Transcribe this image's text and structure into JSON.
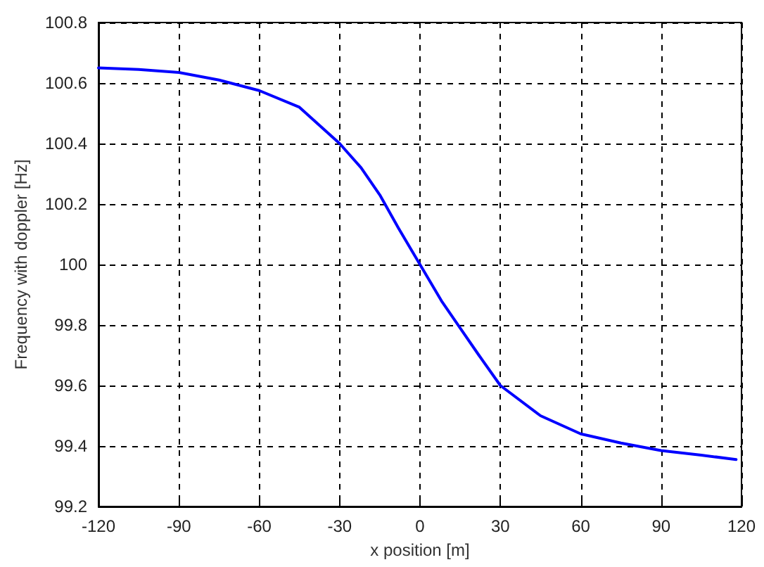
{
  "chart_data": {
    "type": "line",
    "xlabel": "x position [m]",
    "ylabel": "Frequency with doppler [Hz]",
    "x": [
      -120,
      -105,
      -90,
      -75,
      -60,
      -45,
      -30,
      -22,
      -15,
      -8,
      0,
      8,
      15,
      22,
      30,
      45,
      60,
      75,
      90,
      105,
      118
    ],
    "series": [
      {
        "color": "#0000ff",
        "values": [
          100.65,
          100.645,
          100.635,
          100.61,
          100.575,
          100.52,
          100.4,
          100.32,
          100.23,
          100.12,
          100.0,
          99.88,
          99.79,
          99.7,
          99.6,
          99.5,
          99.44,
          99.41,
          99.385,
          99.37,
          99.355
        ]
      }
    ],
    "xlim": [
      -120,
      120
    ],
    "xticks": [
      -120,
      -90,
      -60,
      -30,
      0,
      30,
      60,
      90,
      120
    ],
    "ylim": [
      99.2,
      100.8
    ],
    "yticks": [
      99.2,
      99.4,
      99.6,
      99.8,
      100,
      100.2,
      100.4,
      100.6,
      100.8
    ],
    "grid": true,
    "marker": "none",
    "line_style": "solid"
  }
}
